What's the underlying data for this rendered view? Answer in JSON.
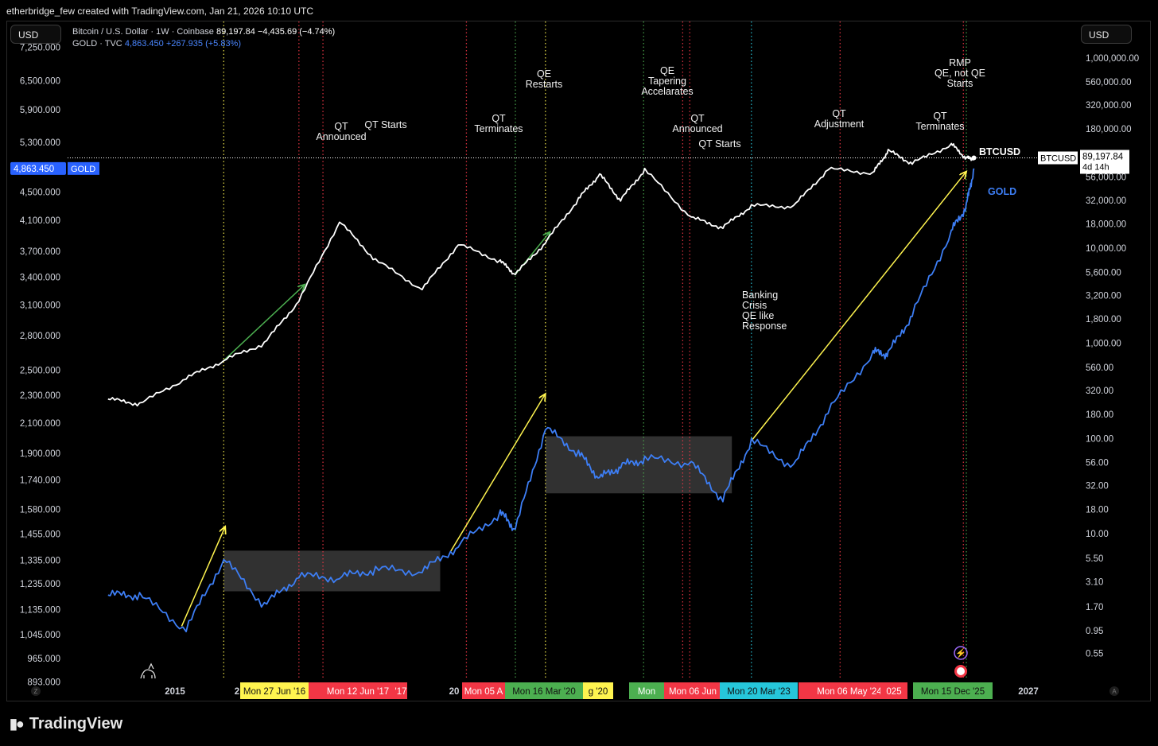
{
  "header": {
    "caption": "etherbridge_few created with TradingView.com, Jan 21, 2026 10:10 UTC"
  },
  "currency_left": "USD",
  "currency_right": "USD",
  "legend": {
    "btc_symbol": "Bitcoin / U.S. Dollar · 1W · Coinbase",
    "btc_value": "89,197.84  −4,435.69 (−4.74%)",
    "gold_symbol": "GOLD · TVC",
    "gold_value": "4,863.450  +267.935 (+5.83%)"
  },
  "brand": {
    "name": "TradingView"
  },
  "colors": {
    "btc": "#ffffff",
    "gold": "#3d7ef5",
    "green": "#4caf50",
    "red": "#f23645",
    "yellow": "#fff44f",
    "cyan": "#26c6da",
    "band": "#5a5a5a"
  },
  "chart_data": {
    "type": "line",
    "x": [
      "2015-01-05",
      "2015-06-01",
      "2016-01-04",
      "2016-06-27",
      "2017-01-02",
      "2017-06-12",
      "2017-12-18",
      "2018-06-04",
      "2019-01-07",
      "2019-06-24",
      "2020-01-06",
      "2020-03-16",
      "2020-08-03",
      "2021-01-04",
      "2021-04-12",
      "2021-07-19",
      "2021-11-08",
      "2022-06-13",
      "2022-11-07",
      "2023-03-20",
      "2023-10-02",
      "2024-03-11",
      "2024-10-07",
      "2024-12-16",
      "2025-04-07",
      "2025-10-06",
      "2025-12-15",
      "2026-01-19"
    ],
    "series": [
      {
        "name": "BTCUSD",
        "axis": "right",
        "values": [
          260,
          230,
          430,
          660,
          1000,
          2800,
          19000,
          7500,
          3700,
          11000,
          7300,
          5300,
          11500,
          33000,
          60000,
          32000,
          67000,
          21000,
          16500,
          28000,
          27500,
          68000,
          62000,
          106000,
          78000,
          124000,
          88000,
          89197.84
        ]
      },
      {
        "name": "GOLD",
        "axis": "left",
        "values": [
          1190,
          1190,
          1062,
          1340,
          1150,
          1266,
          1260,
          1295,
          1285,
          1400,
          1560,
          1480,
          2065,
          1900,
          1750,
          1820,
          1865,
          1840,
          1630,
          1980,
          1820,
          2180,
          2650,
          2640,
          3000,
          3950,
          4300,
          4863.45
        ]
      }
    ],
    "left_axis": {
      "scale": "log",
      "ylim": [
        840,
        7900
      ],
      "ticks": [
        "7,250.000",
        "6,500.000",
        "5,900.000",
        "5,300.000",
        "4,863.450",
        "4,500.000",
        "4,100.000",
        "3,700.000",
        "3,400.000",
        "3,100.000",
        "2,800.000",
        "2,500.000",
        "2,300.000",
        "2,100.000",
        "1,900.000",
        "1,740.000",
        "1,580.000",
        "1,455.000",
        "1,335.000",
        "1,235.000",
        "1,135.000",
        "1,045.000",
        "965.000",
        "893.000"
      ]
    },
    "right_axis": {
      "scale": "log",
      "ylim": [
        0.3,
        2000000
      ],
      "ticks": [
        "1,000,000.00",
        "560,000.00",
        "320,000.00",
        "180,000.00",
        "89,197.84",
        "56,000.00",
        "32,000.00",
        "18,000.00",
        "10,000.00",
        "5,600.00",
        "3,200.00",
        "1,800.00",
        "1,000.00",
        "560.00",
        "320.00",
        "180.00",
        "100.00",
        "56.00",
        "32.00",
        "18.00",
        "10.00",
        "5.50",
        "3.10",
        "1.70",
        "0.95",
        "0.55"
      ]
    },
    "x_ticks": [
      "2015",
      "2",
      "20",
      "2025",
      "2027"
    ],
    "date_tags": [
      "Mon 27 Jun '16",
      "Mon 12 Jun '17",
      "'17",
      "Mon 05 A",
      "Mon 16 Mar '20",
      "g '20",
      "Mon",
      "Mon 06 Jun",
      "Mon 20 Mar '23",
      "Mon 06 May '24",
      "025",
      "Mon 15 Dec '25"
    ],
    "price_tags": {
      "gold": "4,863.450",
      "gold_label": "GOLD",
      "btc_label": "BTCUSD",
      "btc_price": "89,197.84",
      "btc_countdown": "4d 14h"
    },
    "series_labels": [
      "BTCUSD",
      "GOLD"
    ],
    "vertical_lines": [
      {
        "date": "2016-06-27",
        "color": "yellow"
      },
      {
        "date": "2017-06-12",
        "color": "red"
      },
      {
        "date": "2017-10-02",
        "color": "red"
      },
      {
        "date": "2019-08-01",
        "color": "red"
      },
      {
        "date": "2020-03-16",
        "color": "green"
      },
      {
        "date": "2020-08-03",
        "color": "yellow"
      },
      {
        "date": "2021-11-03",
        "color": "green"
      },
      {
        "date": "2022-05-04",
        "color": "red"
      },
      {
        "date": "2022-06-06",
        "color": "red"
      },
      {
        "date": "2023-03-20",
        "color": "cyan"
      },
      {
        "date": "2024-05-06",
        "color": "red"
      },
      {
        "date": "2025-12-01",
        "color": "red"
      },
      {
        "date": "2025-12-15",
        "color": "green"
      }
    ],
    "annotations": [
      "QT\nAnnounced",
      "QT Starts",
      "QT\nTerminates",
      "QE\nRestarts",
      "QE\nTapering\nAccelarates",
      "QT\nAnnounced",
      "QT Starts",
      "Banking\nCrisis\nQE like\nResponse",
      "QT\nAdjustment",
      "RMP\nQE, not QE\nStarts",
      "QT\nTerminates"
    ],
    "arrows": [
      {
        "series": "GOLD",
        "color": "yellow",
        "from": "2015-12-14",
        "to": "2016-07-04"
      },
      {
        "series": "BTCUSD",
        "color": "green",
        "from": "2016-06-27",
        "to": "2017-07-10"
      },
      {
        "series": "GOLD",
        "color": "yellow",
        "from": "2019-05-20",
        "to": "2020-08-03"
      },
      {
        "series": "BTCUSD",
        "color": "green",
        "from": "2020-03-16",
        "to": "2020-08-24"
      },
      {
        "series": "GOLD",
        "color": "yellow",
        "from": "2023-03-20",
        "to": "2025-12-15"
      }
    ],
    "consolidation_boxes": [
      {
        "series": "GOLD",
        "from": "2016-06-27",
        "to": "2019-04-01",
        "ylim": [
          1205,
          1378
        ]
      },
      {
        "series": "GOLD",
        "from": "2020-08-03",
        "to": "2022-12-19",
        "ylim": [
          1665,
          2010
        ]
      }
    ],
    "grid": false,
    "legend": "top-left"
  }
}
